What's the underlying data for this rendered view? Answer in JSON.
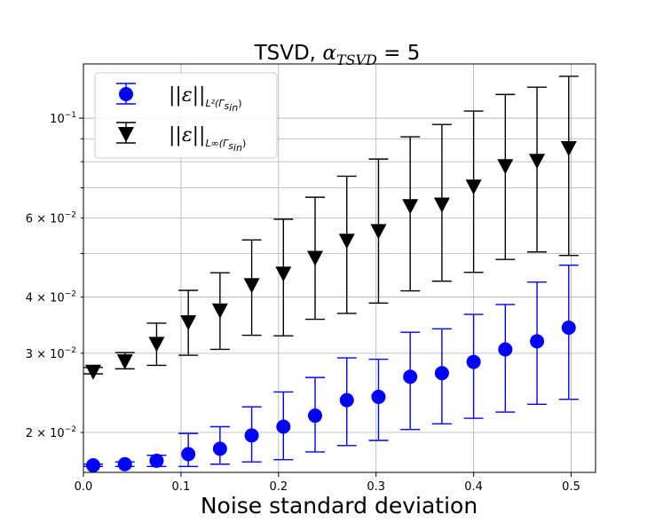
{
  "chart_data": {
    "type": "scatter",
    "title_prefix": "TSVD, ",
    "title_var": "α",
    "title_sub": "TSVD",
    "title_suffix": " = 5",
    "xlabel": "Noise standard deviation",
    "ylabel": "",
    "yscale": "log",
    "xlim": [
      0.0,
      0.525
    ],
    "ylim": [
      0.0163,
      0.132
    ],
    "grid": true,
    "legend_position": "top-left",
    "x_ticks": [
      {
        "value": 0.0,
        "label": "0.0"
      },
      {
        "value": 0.1,
        "label": "0.1"
      },
      {
        "value": 0.2,
        "label": "0.2"
      },
      {
        "value": 0.3,
        "label": "0.3"
      },
      {
        "value": 0.4,
        "label": "0.4"
      },
      {
        "value": 0.5,
        "label": "0.5"
      }
    ],
    "y_ticks_major": [
      {
        "value": 0.1,
        "label_base": "10",
        "label_exp": "−1",
        "label_coef": ""
      }
    ],
    "y_ticks_minor": [
      {
        "value": 0.02,
        "label_coef": "2 × ",
        "label_base": "10",
        "label_exp": "−2"
      },
      {
        "value": 0.03,
        "label_coef": "3 × ",
        "label_base": "10",
        "label_exp": "−2"
      },
      {
        "value": 0.04,
        "label_coef": "4 × ",
        "label_base": "10",
        "label_exp": "−2"
      },
      {
        "value": 0.05,
        "label_coef": "",
        "label_base": "",
        "label_exp": ""
      },
      {
        "value": 0.06,
        "label_coef": "6 × ",
        "label_base": "10",
        "label_exp": "−2"
      },
      {
        "value": 0.07,
        "label_coef": "",
        "label_base": "",
        "label_exp": ""
      },
      {
        "value": 0.08,
        "label_coef": "",
        "label_base": "",
        "label_exp": ""
      },
      {
        "value": 0.09,
        "label_coef": "",
        "label_base": "",
        "label_exp": ""
      }
    ],
    "x": [
      0.01,
      0.0425,
      0.075,
      0.1075,
      0.14,
      0.1725,
      0.205,
      0.2375,
      0.27,
      0.3025,
      0.335,
      0.3675,
      0.4,
      0.4325,
      0.465,
      0.4975
    ],
    "series": [
      {
        "name": "L2",
        "legend_main": "||ε||",
        "legend_sub": "L²(Γ",
        "legend_sub2": "s",
        "legend_sub3": "in",
        "legend_sub_close": ")",
        "marker": "circle",
        "color": "#0000ff",
        "values": [
          0.0169,
          0.017,
          0.0173,
          0.0179,
          0.0184,
          0.0197,
          0.0206,
          0.0218,
          0.0236,
          0.024,
          0.0266,
          0.0271,
          0.0287,
          0.0306,
          0.0319,
          0.0342
        ],
        "lower": [
          0.0168,
          0.0168,
          0.0168,
          0.0168,
          0.017,
          0.0172,
          0.0174,
          0.0181,
          0.0187,
          0.0192,
          0.0203,
          0.0209,
          0.0215,
          0.0222,
          0.0231,
          0.0237
        ],
        "upper": [
          0.017,
          0.0172,
          0.0178,
          0.0199,
          0.0206,
          0.0228,
          0.0246,
          0.0265,
          0.0293,
          0.0291,
          0.0334,
          0.034,
          0.0366,
          0.0385,
          0.0432,
          0.0471
        ]
      },
      {
        "name": "Linf",
        "legend_main": "||ε||",
        "legend_sub": "L∞(Γ",
        "legend_sub2": "s",
        "legend_sub3": "in",
        "legend_sub_close": ")",
        "marker": "triangle-down",
        "color": "#000000",
        "values": [
          0.0274,
          0.0289,
          0.0316,
          0.0353,
          0.0375,
          0.0427,
          0.0453,
          0.0491,
          0.0536,
          0.0563,
          0.064,
          0.0645,
          0.0707,
          0.0785,
          0.0807,
          0.0861
        ],
        "lower": [
          0.027,
          0.0277,
          0.0282,
          0.0297,
          0.0306,
          0.0329,
          0.0328,
          0.0357,
          0.0368,
          0.0388,
          0.0413,
          0.0434,
          0.0454,
          0.0485,
          0.0504,
          0.0495
        ],
        "upper": [
          0.0279,
          0.0301,
          0.035,
          0.0414,
          0.0453,
          0.0536,
          0.0596,
          0.0667,
          0.0743,
          0.0811,
          0.0909,
          0.0968,
          0.1037,
          0.1129,
          0.1172,
          0.1239
        ]
      }
    ]
  }
}
